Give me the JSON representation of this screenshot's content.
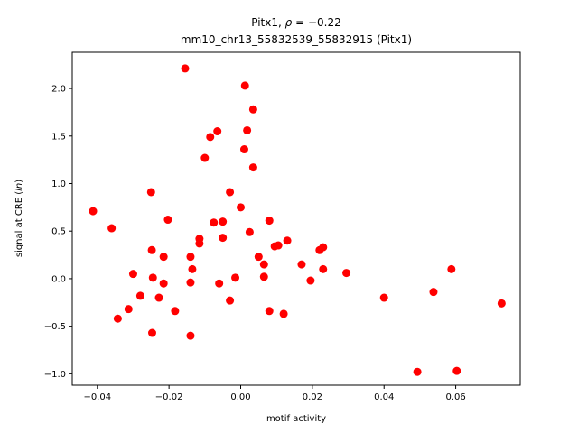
{
  "chart_data": {
    "type": "scatter",
    "title_line1_prefix": "Pitx1, ",
    "title_line1_rho": "ρ",
    "title_line1_suffix": " = −0.22",
    "title_line2": "mm10_chr13_55832539_55832915 (Pitx1)",
    "xlabel": "motif activity",
    "ylabel_prefix": "signal at CRE (",
    "ylabel_italic": "ln",
    "ylabel_suffix": ")",
    "xlim": [
      -0.047,
      0.078
    ],
    "ylim": [
      -1.12,
      2.38
    ],
    "xticks": [
      -0.04,
      -0.02,
      0.0,
      0.02,
      0.04,
      0.06
    ],
    "xtick_labels": [
      "−0.04",
      "−0.02",
      "0.00",
      "0.02",
      "0.04",
      "0.06"
    ],
    "yticks": [
      -1.0,
      -0.5,
      0.0,
      0.5,
      1.0,
      1.5,
      2.0
    ],
    "ytick_labels": [
      "−1.0",
      "−0.5",
      "0.0",
      "0.5",
      "1.0",
      "1.5",
      "2.0"
    ],
    "marker_color": "#ff0000",
    "points": [
      {
        "x": -0.0412,
        "y": 0.71
      },
      {
        "x": -0.036,
        "y": 0.53
      },
      {
        "x": -0.0343,
        "y": -0.42
      },
      {
        "x": -0.0313,
        "y": -0.32
      },
      {
        "x": -0.03,
        "y": 0.05
      },
      {
        "x": -0.028,
        "y": -0.18
      },
      {
        "x": -0.025,
        "y": 0.91
      },
      {
        "x": -0.0248,
        "y": 0.3
      },
      {
        "x": -0.0245,
        "y": 0.01
      },
      {
        "x": -0.0247,
        "y": -0.57
      },
      {
        "x": -0.0228,
        "y": -0.2
      },
      {
        "x": -0.0215,
        "y": 0.23
      },
      {
        "x": -0.0215,
        "y": -0.05
      },
      {
        "x": -0.0203,
        "y": 0.62
      },
      {
        "x": -0.0183,
        "y": -0.34
      },
      {
        "x": -0.0155,
        "y": 2.21
      },
      {
        "x": -0.014,
        "y": 0.23
      },
      {
        "x": -0.014,
        "y": -0.04
      },
      {
        "x": -0.0135,
        "y": 0.1
      },
      {
        "x": -0.014,
        "y": -0.6
      },
      {
        "x": -0.0115,
        "y": 0.42
      },
      {
        "x": -0.0115,
        "y": 0.37
      },
      {
        "x": -0.01,
        "y": 1.27
      },
      {
        "x": -0.0085,
        "y": 1.49
      },
      {
        "x": -0.0075,
        "y": 0.59
      },
      {
        "x": -0.0065,
        "y": 1.55
      },
      {
        "x": -0.006,
        "y": -0.05
      },
      {
        "x": -0.005,
        "y": 0.6
      },
      {
        "x": -0.005,
        "y": 0.43
      },
      {
        "x": -0.003,
        "y": 0.91
      },
      {
        "x": -0.003,
        "y": -0.23
      },
      {
        "x": -0.0015,
        "y": 0.01
      },
      {
        "x": 0.0,
        "y": 0.75
      },
      {
        "x": 0.001,
        "y": 1.36
      },
      {
        "x": 0.0012,
        "y": 2.03
      },
      {
        "x": 0.0018,
        "y": 1.56
      },
      {
        "x": 0.0025,
        "y": 0.49
      },
      {
        "x": 0.0035,
        "y": 1.78
      },
      {
        "x": 0.0035,
        "y": 1.17
      },
      {
        "x": 0.005,
        "y": 0.23
      },
      {
        "x": 0.0065,
        "y": 0.15
      },
      {
        "x": 0.0065,
        "y": 0.02
      },
      {
        "x": 0.008,
        "y": 0.61
      },
      {
        "x": 0.008,
        "y": -0.34
      },
      {
        "x": 0.0095,
        "y": 0.34
      },
      {
        "x": 0.0105,
        "y": 0.35
      },
      {
        "x": 0.012,
        "y": -0.37
      },
      {
        "x": 0.013,
        "y": 0.4
      },
      {
        "x": 0.017,
        "y": 0.15
      },
      {
        "x": 0.0195,
        "y": -0.02
      },
      {
        "x": 0.022,
        "y": 0.3
      },
      {
        "x": 0.023,
        "y": 0.33
      },
      {
        "x": 0.023,
        "y": 0.1
      },
      {
        "x": 0.0295,
        "y": 0.06
      },
      {
        "x": 0.04,
        "y": -0.2
      },
      {
        "x": 0.0493,
        "y": -0.98
      },
      {
        "x": 0.0538,
        "y": -0.14
      },
      {
        "x": 0.0588,
        "y": 0.1
      },
      {
        "x": 0.0603,
        "y": -0.97
      },
      {
        "x": 0.0728,
        "y": -0.26
      }
    ]
  }
}
